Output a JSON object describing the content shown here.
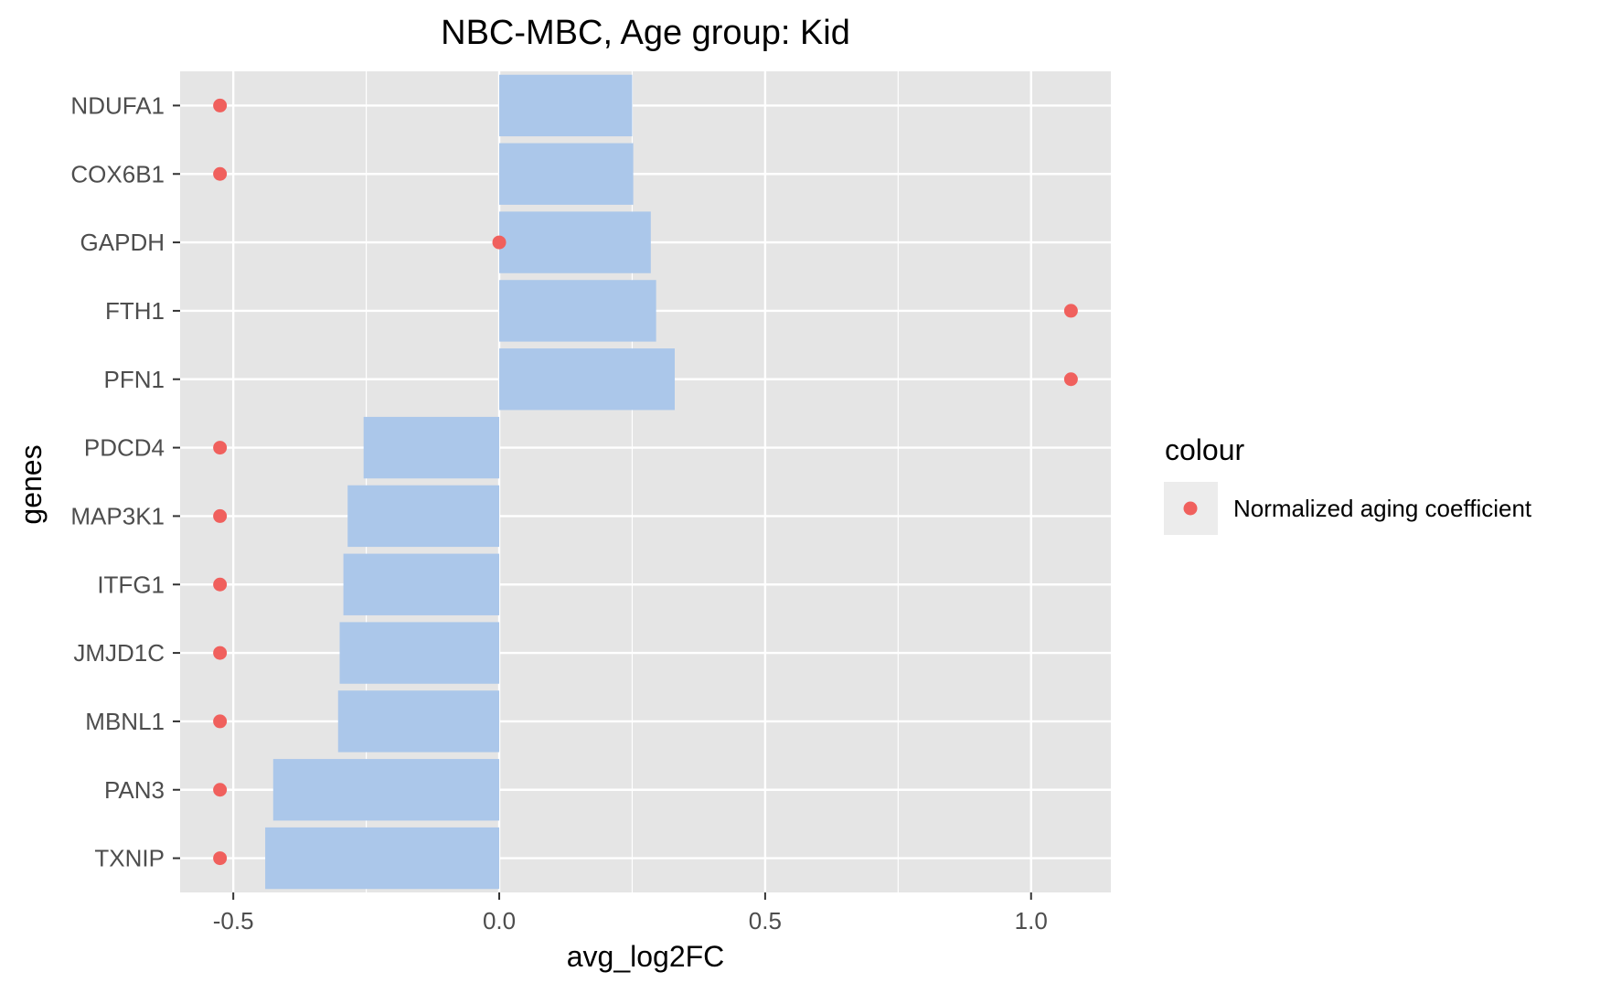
{
  "chart_data": {
    "type": "bar",
    "title": "NBC-MBC, Age group: Kid",
    "xlabel": "avg_log2FC",
    "ylabel": "genes",
    "orientation": "horizontal",
    "categories": [
      "NDUFA1",
      "COX6B1",
      "GAPDH",
      "FTH1",
      "PFN1",
      "PDCD4",
      "MAP3K1",
      "ITFG1",
      "JMJD1C",
      "MBNL1",
      "PAN3",
      "TXNIP"
    ],
    "xlim": [
      -0.6,
      1.15
    ],
    "x_ticks": [
      -0.5,
      0.0,
      0.5,
      1.0
    ],
    "x_tick_labels": [
      "-0.5",
      "0.0",
      "0.5",
      "1.0"
    ],
    "grid": true,
    "series": [
      {
        "kind": "bar",
        "color": "#abc7ea",
        "values": [
          0.25,
          0.252,
          0.285,
          0.295,
          0.33,
          -0.255,
          -0.285,
          -0.293,
          -0.3,
          -0.303,
          -0.425,
          -0.44
        ]
      },
      {
        "kind": "point",
        "name": "Normalized aging coefficient",
        "color": "#f0605d",
        "values": [
          -0.525,
          -0.525,
          0.0,
          1.075,
          1.075,
          -0.525,
          -0.525,
          -0.525,
          -0.525,
          -0.525,
          -0.525,
          -0.525
        ]
      }
    ],
    "legend": {
      "title": "colour",
      "placement": "right",
      "entries": [
        "Normalized aging coefficient"
      ]
    },
    "colors": {
      "panel_background": "#e5e5e5",
      "gridline": "#ffffff",
      "text": "#000000",
      "tick_text": "#4d4d4d",
      "legend_key_background": "#ececec"
    }
  }
}
